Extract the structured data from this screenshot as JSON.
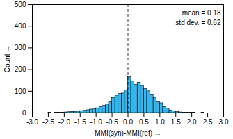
{
  "chart_data": {
    "type": "histogram",
    "x_label": "MMI(syn)-MMI(ref)",
    "y_label": "Count",
    "bins": [
      -3.0,
      -2.9,
      -2.8,
      -2.7,
      -2.6,
      -2.5,
      -2.4,
      -2.3,
      -2.2,
      -2.1,
      -2.0,
      -1.9,
      -1.8,
      -1.7,
      -1.6,
      -1.5,
      -1.4,
      -1.3,
      -1.2,
      -1.1,
      -1.0,
      -0.9,
      -0.8,
      -0.7,
      -0.6,
      -0.5,
      -0.4,
      -0.3,
      -0.2,
      -0.1,
      0.0,
      0.1,
      0.2,
      0.3,
      0.4,
      0.5,
      0.6,
      0.7,
      0.8,
      0.9,
      1.0,
      1.1,
      1.2,
      1.3,
      1.4,
      1.5,
      1.6,
      1.7,
      1.8,
      1.9,
      2.0,
      2.1,
      2.2,
      2.3,
      2.4,
      2.5,
      2.6,
      2.7,
      2.8,
      2.9,
      3.0
    ],
    "values": [
      0,
      0,
      0,
      0,
      0,
      1,
      0,
      1,
      2,
      2,
      3,
      4,
      5,
      6,
      7,
      9,
      11,
      13,
      16,
      19,
      22,
      27,
      33,
      40,
      50,
      70,
      80,
      88,
      90,
      105,
      165,
      145,
      130,
      140,
      125,
      110,
      100,
      85,
      70,
      50,
      45,
      28,
      20,
      12,
      8,
      5,
      3,
      2,
      1,
      1,
      1,
      0,
      0,
      1,
      0,
      0,
      0,
      0,
      0,
      0
    ],
    "color": "#33b5ee",
    "xlim": [
      -3.0,
      3.0
    ],
    "xticks": [
      {
        "value": -3.0,
        "label": "-3.0"
      },
      {
        "value": -2.5,
        "label": "-2.5"
      },
      {
        "value": -2.0,
        "label": "-2.0"
      },
      {
        "value": -1.5,
        "label": "-1.5"
      },
      {
        "value": -1.0,
        "label": "-1.0"
      },
      {
        "value": -0.5,
        "label": "-0.5"
      },
      {
        "value": 0.0,
        "label": "0.0"
      },
      {
        "value": 0.5,
        "label": "0.5"
      },
      {
        "value": 1.0,
        "label": "1.0"
      },
      {
        "value": 1.5,
        "label": "1.5"
      },
      {
        "value": 2.0,
        "label": "2.0"
      },
      {
        "value": 2.5,
        "label": "2.5"
      },
      {
        "value": 3.0,
        "label": "3.0"
      }
    ],
    "ylim": [
      0,
      500
    ],
    "yticks": [
      0,
      100,
      200,
      300,
      400,
      500
    ],
    "vline": 0,
    "annotations": [
      "mean = 0.18",
      "std dev. = 0.62"
    ]
  }
}
